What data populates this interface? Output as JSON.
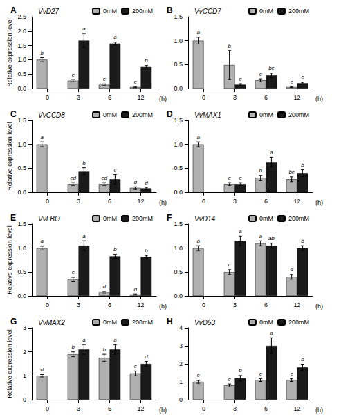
{
  "chart_data": [
    {
      "type": "bar",
      "title": "A",
      "subtitle": "VvD27",
      "xlabel": "(h)",
      "ylabel": "Relative expression level",
      "categories": [
        "0",
        "3",
        "6",
        "12"
      ],
      "series": [
        {
          "name": "0mM",
          "color": "#b0b0b0",
          "values": [
            1.0,
            0.27,
            0.13,
            0.05
          ],
          "errors": [
            0.07,
            0.04,
            0.03,
            0.02
          ],
          "significance": [
            "b",
            "c",
            "c",
            "c"
          ]
        },
        {
          "name": "200mM",
          "color": "#1a1a1a",
          "values": [
            null,
            1.67,
            1.57,
            0.75
          ],
          "errors": [
            null,
            0.25,
            0.05,
            0.05
          ],
          "significance": [
            null,
            "a",
            "a",
            "b"
          ]
        }
      ],
      "ylim": [
        0,
        2.5
      ],
      "yticks": [
        {
          "value": 0,
          "label": "0.0"
        },
        0.5,
        {
          "value": 1,
          "label": "1.0"
        },
        1.5,
        {
          "value": 2,
          "label": "2.0"
        },
        2.5
      ],
      "grid": false,
      "legend": "upper right"
    },
    {
      "type": "bar",
      "title": "B",
      "subtitle": "VvCCD7",
      "xlabel": "(h)",
      "categories": [
        "0",
        "3",
        "6",
        "12"
      ],
      "series": [
        {
          "name": "0mM",
          "color": "#b0b0b0",
          "values": [
            1.0,
            0.49,
            0.17,
            0.03
          ],
          "errors": [
            0.07,
            0.3,
            0.03,
            0.01
          ],
          "significance": [
            "a",
            "b",
            "c",
            "c"
          ]
        },
        {
          "name": "200mM",
          "color": "#1a1a1a",
          "values": [
            null,
            0.08,
            0.27,
            0.11
          ],
          "errors": [
            null,
            0.02,
            0.05,
            0.02
          ],
          "significance": [
            null,
            "c",
            "bc",
            "c"
          ]
        }
      ],
      "ylim": [
        0,
        1.5
      ],
      "yticks": [
        {
          "value": 0,
          "label": "0.0"
        },
        0.5,
        {
          "value": 1,
          "label": "1.0"
        },
        1.5
      ],
      "grid": false,
      "legend": "upper right"
    },
    {
      "type": "bar",
      "title": "C",
      "subtitle": "VvCCD8",
      "xlabel": "(h)",
      "ylabel": "Relative expression level",
      "categories": [
        "0",
        "3",
        "6",
        "12"
      ],
      "series": [
        {
          "name": "0mM",
          "color": "#b0b0b0",
          "values": [
            1.0,
            0.17,
            0.17,
            0.09
          ],
          "errors": [
            0.05,
            0.03,
            0.03,
            0.02
          ],
          "significance": [
            "a",
            "cd",
            "cd",
            "d"
          ]
        },
        {
          "name": "200mM",
          "color": "#1a1a1a",
          "values": [
            null,
            0.44,
            0.27,
            0.08
          ],
          "errors": [
            null,
            0.07,
            0.1,
            0.02
          ],
          "significance": [
            null,
            "b",
            "c",
            "d"
          ]
        }
      ],
      "ylim": [
        0,
        1.5
      ],
      "yticks": [
        {
          "value": 0,
          "label": "0.0"
        },
        0.5,
        {
          "value": 1,
          "label": "1.0"
        },
        1.5
      ],
      "grid": false,
      "legend": "upper right"
    },
    {
      "type": "bar",
      "title": "D",
      "subtitle": "VvMAX1",
      "xlabel": "(h)",
      "categories": [
        "0",
        "3",
        "6",
        "12"
      ],
      "series": [
        {
          "name": "0mM",
          "color": "#b0b0b0",
          "values": [
            1.0,
            0.17,
            0.3,
            0.27
          ],
          "errors": [
            0.05,
            0.03,
            0.05,
            0.05
          ],
          "significance": [
            "a",
            "c",
            "b",
            "bc"
          ]
        },
        {
          "name": "200mM",
          "color": "#1a1a1a",
          "values": [
            null,
            0.17,
            0.63,
            0.4
          ],
          "errors": [
            null,
            0.03,
            0.1,
            0.07
          ],
          "significance": [
            null,
            "c",
            "a",
            "b"
          ]
        }
      ],
      "ylim": [
        0,
        1.5
      ],
      "yticks": [
        {
          "value": 0,
          "label": "0.0"
        },
        0.5,
        {
          "value": 1,
          "label": "1.0"
        },
        1.5
      ],
      "grid": false,
      "legend": "upper right"
    },
    {
      "type": "bar",
      "title": "E",
      "subtitle": "VvLBO",
      "xlabel": "(h)",
      "ylabel": "Relative expression level",
      "categories": [
        "0",
        "3",
        "6",
        "12"
      ],
      "series": [
        {
          "name": "0mM",
          "color": "#b0b0b0",
          "values": [
            1.0,
            0.35,
            0.08,
            0.03
          ],
          "errors": [
            0.04,
            0.04,
            0.02,
            0.01
          ],
          "significance": [
            "a",
            "c",
            "d",
            "d"
          ]
        },
        {
          "name": "200mM",
          "color": "#1a1a1a",
          "values": [
            null,
            1.05,
            0.83,
            0.82
          ],
          "errors": [
            null,
            0.1,
            0.04,
            0.03
          ],
          "significance": [
            null,
            "a",
            "b",
            "b"
          ]
        }
      ],
      "ylim": [
        0,
        1.5
      ],
      "yticks": [
        {
          "value": 0,
          "label": "0.0"
        },
        0.5,
        {
          "value": 1,
          "label": "1.0"
        },
        1.5
      ],
      "grid": false,
      "legend": "upper right"
    },
    {
      "type": "bar",
      "title": "F",
      "subtitle": "VvD14",
      "xlabel": "(h)",
      "categories": [
        "0",
        "3",
        "6",
        "12"
      ],
      "series": [
        {
          "name": "0mM",
          "color": "#b0b0b0",
          "values": [
            1.0,
            0.5,
            1.1,
            0.4
          ],
          "errors": [
            0.05,
            0.05,
            0.05,
            0.05
          ],
          "significance": [
            "a",
            "c",
            "a",
            "d"
          ]
        },
        {
          "name": "200mM",
          "color": "#1a1a1a",
          "values": [
            null,
            1.15,
            1.05,
            1.0
          ],
          "errors": [
            null,
            0.1,
            0.05,
            0.05
          ],
          "significance": [
            null,
            "a",
            "ab",
            "b"
          ]
        }
      ],
      "ylim": [
        0,
        1.5
      ],
      "yticks": [
        {
          "value": 0,
          "label": "0.0"
        },
        0.5,
        {
          "value": 1,
          "label": "1.0"
        },
        1.5
      ],
      "grid": false,
      "legend": "upper right"
    },
    {
      "type": "bar",
      "title": "G",
      "subtitle": "VvMAX2",
      "xlabel": "(h)",
      "ylabel": "Relative expression level",
      "categories": [
        "0",
        "3",
        "6",
        "12"
      ],
      "series": [
        {
          "name": "0mM",
          "color": "#b0b0b0",
          "values": [
            1.0,
            1.9,
            1.75,
            1.1
          ],
          "errors": [
            0.05,
            0.1,
            0.15,
            0.1
          ],
          "significance": [
            "d",
            "b",
            "b",
            "c"
          ]
        },
        {
          "name": "200mM",
          "color": "#1a1a1a",
          "values": [
            null,
            2.1,
            2.1,
            1.5
          ],
          "errors": [
            null,
            0.2,
            0.2,
            0.1
          ],
          "significance": [
            null,
            "a",
            "a",
            "d"
          ]
        }
      ],
      "ylim": [
        0,
        3.0
      ],
      "yticks": [
        0,
        1,
        2,
        3
      ],
      "grid": false,
      "legend": "upper right"
    },
    {
      "type": "bar",
      "title": "H",
      "subtitle": "VvD53",
      "xlabel": "(h)",
      "categories": [
        "0",
        "3",
        "6",
        "12"
      ],
      "series": [
        {
          "name": "0mM",
          "color": "#b0b0b0",
          "values": [
            1.0,
            0.8,
            1.1,
            1.1
          ],
          "errors": [
            0.08,
            0.08,
            0.08,
            0.08
          ],
          "significance": [
            "c",
            "c",
            "c",
            "c"
          ]
        },
        {
          "name": "200mM",
          "color": "#1a1a1a",
          "values": [
            null,
            1.2,
            3.0,
            1.8
          ],
          "errors": [
            null,
            0.15,
            0.45,
            0.18
          ],
          "significance": [
            null,
            "b",
            "a",
            "b"
          ]
        }
      ],
      "ylim": [
        0,
        4.0
      ],
      "yticks": [
        0,
        1,
        2,
        3,
        4
      ],
      "grid": false,
      "legend": "upper right"
    }
  ]
}
